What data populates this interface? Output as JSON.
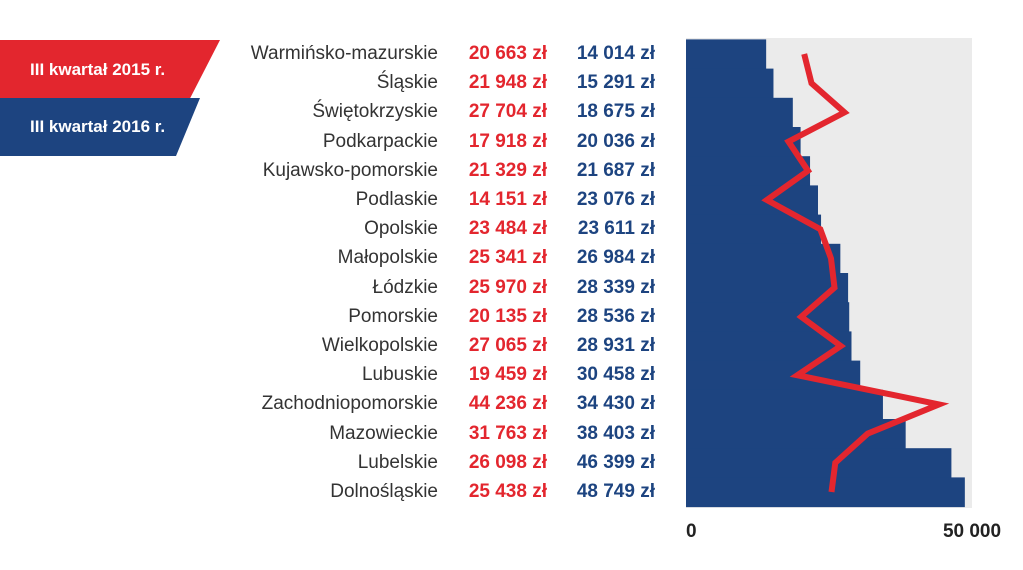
{
  "legend": {
    "series_2015": "III kwartał 2015 r.",
    "series_2016": "III kwartał 2016 r."
  },
  "colors": {
    "red": "#e3262e",
    "blue": "#1d4480",
    "plot_bg": "#ebebeb"
  },
  "chart_data": {
    "type": "bar",
    "categories": [
      "Warmińsko-mazurskie",
      "Śląskie",
      "Świętokrzyskie",
      "Podkarpackie",
      "Kujawsko-pomorskie",
      "Podlaskie",
      "Opolskie",
      "Małopolskie",
      "Łódzkie",
      "Pomorskie",
      "Wielkopolskie",
      "Lubuskie",
      "Zachodniopomorskie",
      "Mazowieckie",
      "Lubelskie",
      "Dolnośląskie"
    ],
    "series": [
      {
        "name": "III kwartał 2015 r.",
        "render": "line",
        "color": "#e3262e",
        "values": [
          20663,
          21948,
          27704,
          17918,
          21329,
          14151,
          23484,
          25341,
          25970,
          20135,
          27065,
          19459,
          44236,
          31763,
          26098,
          25438
        ],
        "labels": [
          "20 663 zł",
          "21 948 zł",
          "27 704 zł",
          "17 918 zł",
          "21 329 zł",
          "14 151 zł",
          "23 484 zł",
          "25 341 zł",
          "25 970 zł",
          "20 135 zł",
          "27 065 zł",
          "19 459 zł",
          "44 236 zł",
          "31 763 zł",
          "26 098 zł",
          "25 438 zł"
        ]
      },
      {
        "name": "III kwartał 2016 r.",
        "render": "bar",
        "color": "#1d4480",
        "values": [
          14014,
          15291,
          18675,
          20036,
          21687,
          23076,
          23611,
          26984,
          28339,
          28536,
          28931,
          30458,
          34430,
          38403,
          46399,
          48749
        ],
        "labels": [
          "14 014 zł",
          "15 291 zł",
          "18 675 zł",
          "20 036 zł",
          "21 687 zł",
          "23 076 zł",
          "23 611 zł",
          "26 984 zł",
          "28 339 zł",
          "28 536 zł",
          "28 931 zł",
          "30 458 zł",
          "34 430 zł",
          "38 403 zł",
          "46 399 zł",
          "48 749 zł"
        ]
      }
    ],
    "xlim": [
      0,
      50000
    ],
    "x_ticks": [
      0,
      50000
    ],
    "x_tick_labels": [
      "0",
      "50 000"
    ],
    "orientation": "horizontal",
    "grid": false
  }
}
